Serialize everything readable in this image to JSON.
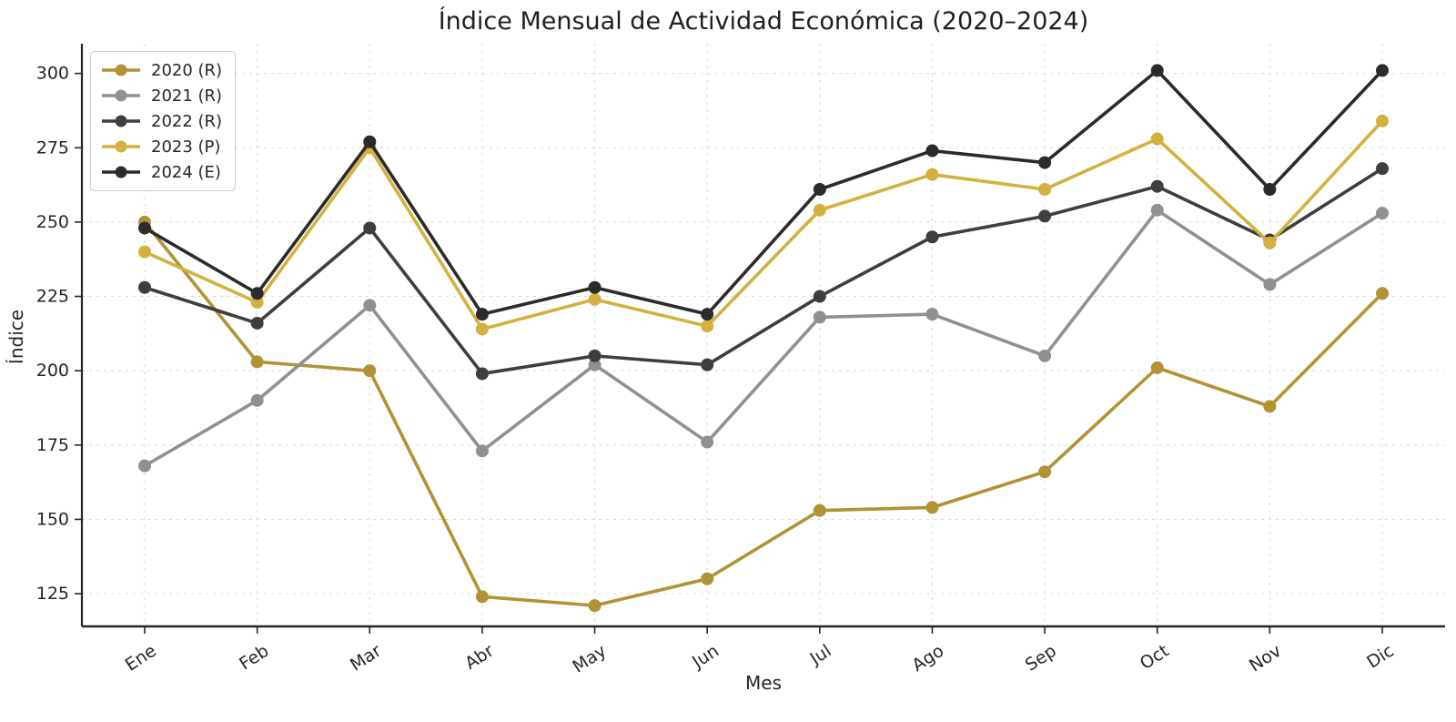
{
  "chart_data": {
    "type": "line",
    "title": "Índice Mensual de Actividad Económica (2020–2024)",
    "xlabel": "Mes",
    "ylabel": "Índice",
    "categories": [
      "Ene",
      "Feb",
      "Mar",
      "Abr",
      "May",
      "Jun",
      "Jul",
      "Ago",
      "Sep",
      "Oct",
      "Nov",
      "Dic"
    ],
    "yticks": [
      125,
      150,
      175,
      200,
      225,
      250,
      275,
      300
    ],
    "ylim": [
      114,
      310
    ],
    "grid": true,
    "grid_style": "dashed",
    "legend_position": "upper-left",
    "series": [
      {
        "name": "2020 (R)",
        "color": "#b19335",
        "values": [
          250,
          203,
          200,
          124,
          121,
          130,
          153,
          154,
          166,
          201,
          188,
          226
        ]
      },
      {
        "name": "2021 (R)",
        "color": "#909090",
        "values": [
          168,
          190,
          222,
          173,
          202,
          176,
          218,
          219,
          205,
          254,
          229,
          253
        ]
      },
      {
        "name": "2022 (R)",
        "color": "#3e3e3e",
        "values": [
          228,
          216,
          248,
          199,
          205,
          202,
          225,
          245,
          252,
          262,
          244,
          268
        ]
      },
      {
        "name": "2023 (P)",
        "color": "#d4b13f",
        "values": [
          240,
          223,
          275,
          214,
          224,
          215,
          254,
          266,
          261,
          278,
          243,
          284
        ]
      },
      {
        "name": "2024 (E)",
        "color": "#2b2b2b",
        "values": [
          248,
          226,
          277,
          219,
          228,
          219,
          261,
          274,
          270,
          301,
          261,
          301
        ]
      }
    ]
  },
  "style_colors": {
    "axis": "#262626",
    "tick_label": "#262626",
    "grid": "#d9d9d9",
    "background": "#ffffff",
    "legend_border": "#cccccc"
  }
}
